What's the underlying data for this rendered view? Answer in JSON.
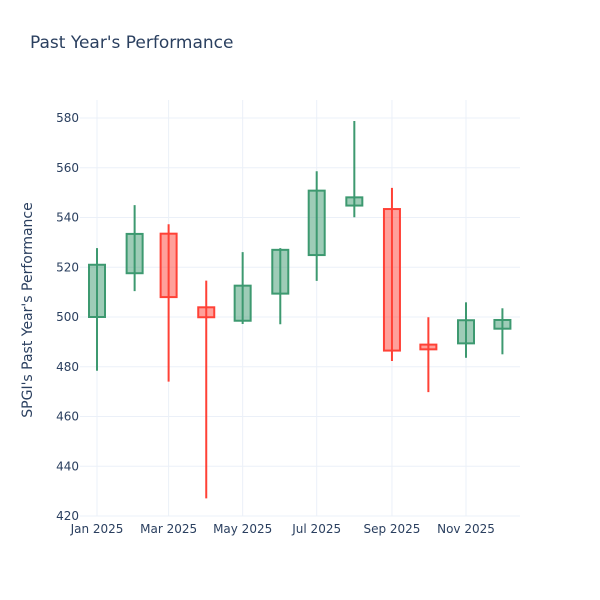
{
  "chart_data": {
    "type": "candlestick",
    "title": "Past Year's Performance",
    "xlabel": "",
    "ylabel": "SPGI's Past Year's Performance",
    "ylim": [
      420,
      588
    ],
    "yticks": [
      420,
      440,
      460,
      480,
      500,
      520,
      540,
      560,
      580
    ],
    "xticks": [
      {
        "date": "2025-01-01",
        "label": "Jan 2025"
      },
      {
        "date": "2025-03-01",
        "label": "Mar 2025"
      },
      {
        "date": "2025-05-01",
        "label": "May 2025"
      },
      {
        "date": "2025-07-01",
        "label": "Jul 2025"
      },
      {
        "date": "2025-09-01",
        "label": "Sep 2025"
      },
      {
        "date": "2025-11-01",
        "label": "Nov 2025"
      }
    ],
    "grid": true,
    "legend": "none",
    "colors": {
      "increasing": "#3D9970",
      "decreasing": "#FF4136",
      "text": "#2a3f5f",
      "grid": "#EBF0F8"
    },
    "candles": [
      {
        "date": "2025-01-01",
        "open": 500.0,
        "high": 527.7,
        "low": 478.4,
        "close": 521.0
      },
      {
        "date": "2025-02-01",
        "open": 517.6,
        "high": 545.0,
        "low": 510.4,
        "close": 533.4
      },
      {
        "date": "2025-03-01",
        "open": 533.5,
        "high": 537.3,
        "low": 474.0,
        "close": 508.0
      },
      {
        "date": "2025-04-01",
        "open": 503.9,
        "high": 514.6,
        "low": 427.1,
        "close": 499.9
      },
      {
        "date": "2025-05-01",
        "open": 498.5,
        "high": 526.1,
        "low": 497.2,
        "close": 512.6
      },
      {
        "date": "2025-06-01",
        "open": 509.4,
        "high": 527.7,
        "low": 497.1,
        "close": 527.0
      },
      {
        "date": "2025-07-01",
        "open": 524.9,
        "high": 558.6,
        "low": 514.5,
        "close": 550.8
      },
      {
        "date": "2025-08-01",
        "open": 544.8,
        "high": 578.8,
        "low": 540.1,
        "close": 548.1
      },
      {
        "date": "2025-09-01",
        "open": 543.4,
        "high": 551.9,
        "low": 482.3,
        "close": 486.5
      },
      {
        "date": "2025-10-01",
        "open": 488.9,
        "high": 499.9,
        "low": 469.8,
        "close": 487.0
      },
      {
        "date": "2025-11-01",
        "open": 489.4,
        "high": 505.9,
        "low": 483.6,
        "close": 498.7
      },
      {
        "date": "2025-12-01",
        "open": 495.3,
        "high": 503.5,
        "low": 485.0,
        "close": 498.8
      }
    ]
  }
}
